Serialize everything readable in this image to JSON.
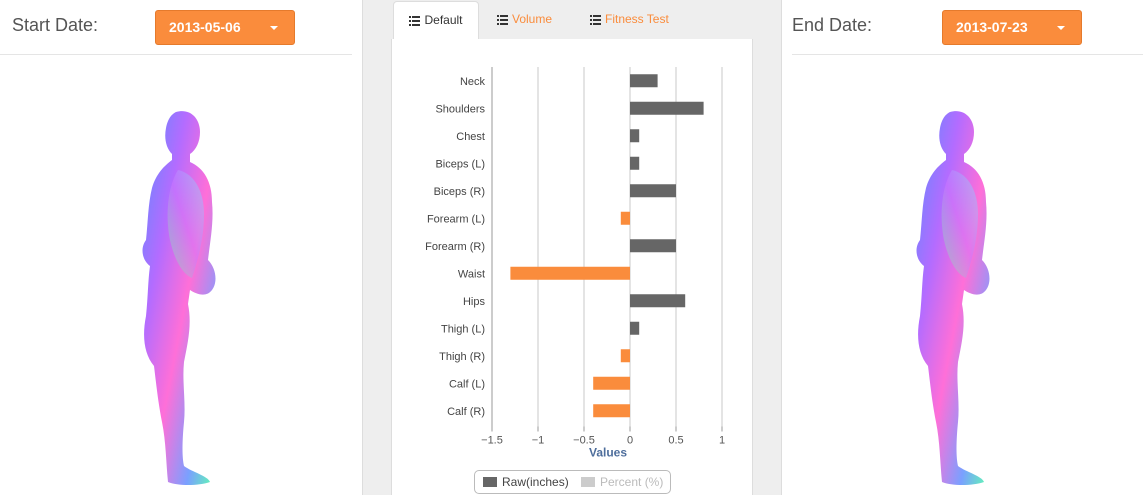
{
  "start": {
    "label": "Start Date:",
    "value": "2013-05-06"
  },
  "end": {
    "label": "End Date:",
    "value": "2013-07-23"
  },
  "tabs": [
    {
      "label": "Default",
      "icon": "list-icon",
      "active": true
    },
    {
      "label": "Volume",
      "icon": "list-icon",
      "active": false
    },
    {
      "label": "Fitness Test",
      "icon": "list-icon",
      "active": false
    }
  ],
  "colors": {
    "accent": "#fa8c3c",
    "positive_bar": "#666666",
    "negative_bar": "#fa8c3c",
    "percent_swatch": "#cccccc",
    "axis_title": "#4e6e9c"
  },
  "legend": {
    "raw": "Raw(inches)",
    "percent": "Percent (%)"
  },
  "chart_data": {
    "type": "bar",
    "orientation": "horizontal",
    "categories": [
      "Neck",
      "Shoulders",
      "Chest",
      "Biceps (L)",
      "Biceps (R)",
      "Forearm (L)",
      "Forearm (R)",
      "Waist",
      "Hips",
      "Thigh (L)",
      "Thigh (R)",
      "Calf (L)",
      "Calf (R)"
    ],
    "series": [
      {
        "name": "Raw(inches)",
        "values": [
          0.3,
          0.8,
          0.1,
          0.1,
          0.5,
          -0.1,
          0.5,
          -1.3,
          0.6,
          0.1,
          -0.1,
          -0.4,
          -0.4
        ]
      }
    ],
    "xlabel": "Values",
    "xlim": [
      -1.5,
      1
    ],
    "xticks": [
      -1.5,
      -1,
      -0.5,
      0,
      0.5,
      1
    ],
    "xtick_labels": [
      "−1.5",
      "−1",
      "−0.5",
      "0",
      "0.5",
      "1"
    ],
    "grid": true,
    "legend_position": "bottom"
  }
}
